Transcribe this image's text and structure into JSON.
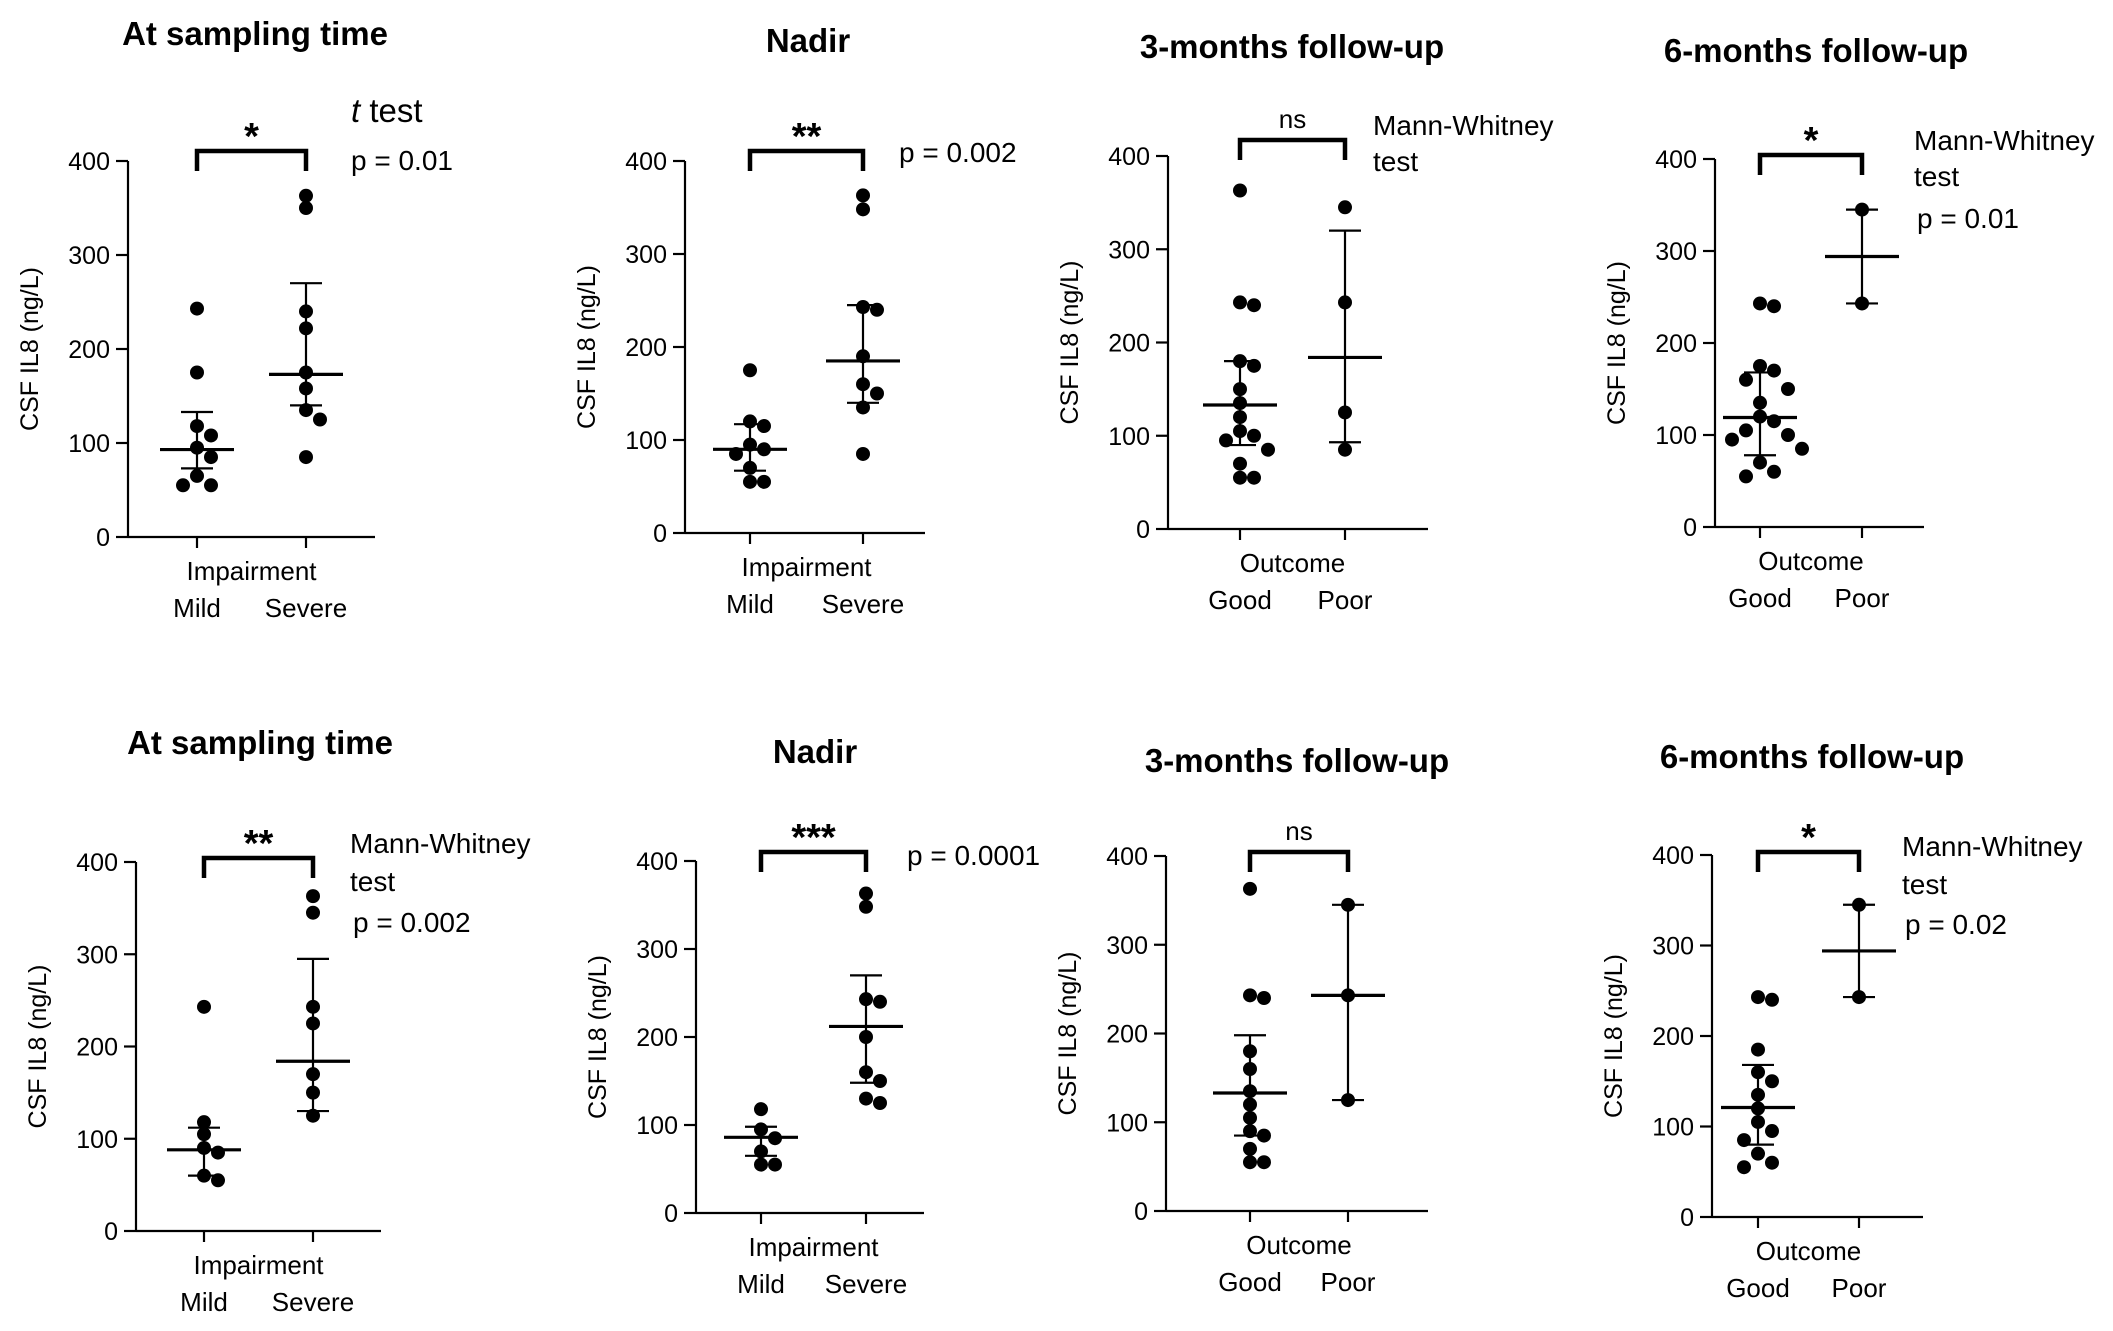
{
  "chart_data": [
    {
      "type": "scatter",
      "title": "At sampling time",
      "ylabel": "CSF IL8 (ng/L)",
      "xlabel": "Impairment",
      "ylim": [
        0,
        400
      ],
      "yticks": [
        "0",
        "100",
        "200",
        "300",
        "400"
      ],
      "groups": [
        {
          "name": "Mild",
          "values": [
            243,
            175,
            118,
            108,
            95,
            85,
            65,
            55,
            55
          ],
          "mean": 93,
          "err_low": 73,
          "err_high": 133
        },
        {
          "name": "Severe",
          "values": [
            363,
            350,
            240,
            222,
            175,
            158,
            135,
            125,
            85
          ],
          "mean": 173,
          "err_low": 140,
          "err_high": 270
        }
      ],
      "significance": "*",
      "annotation": {
        "test_italic": "t",
        "test": " test",
        "p": "p = 0.01"
      }
    },
    {
      "type": "scatter",
      "title": "Nadir",
      "ylabel": "CSF IL8 (ng/L)",
      "xlabel": "Impairment",
      "ylim": [
        0,
        400
      ],
      "yticks": [
        "0",
        "100",
        "200",
        "300",
        "400"
      ],
      "groups": [
        {
          "name": "Mild",
          "values": [
            175,
            120,
            115,
            95,
            90,
            85,
            70,
            55,
            55
          ],
          "mean": 90,
          "err_low": 67,
          "err_high": 117
        },
        {
          "name": "Severe",
          "values": [
            363,
            348,
            243,
            240,
            190,
            160,
            150,
            135,
            85
          ],
          "mean": 185,
          "err_low": 140,
          "err_high": 245
        }
      ],
      "significance": "**",
      "annotation": {
        "test_italic": "",
        "test": "",
        "p": "p = 0.002"
      }
    },
    {
      "type": "scatter",
      "title": "3-months follow-up",
      "ylabel": "CSF IL8 (ng/L)",
      "xlabel": "Outcome",
      "ylim": [
        0,
        400
      ],
      "yticks": [
        "0",
        "100",
        "200",
        "300",
        "400"
      ],
      "groups": [
        {
          "name": "Good",
          "values": [
            363,
            243,
            240,
            180,
            175,
            150,
            135,
            120,
            105,
            100,
            95,
            85,
            70,
            55,
            55
          ],
          "mean": 133,
          "err_low": 90,
          "err_high": 180
        },
        {
          "name": "Poor",
          "values": [
            345,
            243,
            125,
            85
          ],
          "mean": 184,
          "err_low": 93,
          "err_high": 320
        }
      ],
      "significance": "ns",
      "annotation": {
        "test_italic": "",
        "test": "Mann-Whitney test",
        "p": ""
      }
    },
    {
      "type": "scatter",
      "title": "6-months follow-up",
      "ylabel": "CSF IL8 (ng/L)",
      "xlabel": "Outcome",
      "ylim": [
        0,
        400
      ],
      "yticks": [
        "0",
        "100",
        "200",
        "300",
        "400"
      ],
      "groups": [
        {
          "name": "Good",
          "values": [
            243,
            240,
            175,
            170,
            160,
            150,
            135,
            120,
            115,
            105,
            100,
            95,
            85,
            70,
            60,
            55
          ],
          "mean": 119,
          "err_low": 78,
          "err_high": 168
        },
        {
          "name": "Poor",
          "values": [
            345,
            243
          ],
          "mean": 294,
          "err_low": 243,
          "err_high": 345
        }
      ],
      "significance": "*",
      "annotation": {
        "test_italic": "",
        "test": "Mann-Whitney test",
        "p": "p = 0.01"
      }
    },
    {
      "type": "scatter",
      "title": "At sampling time",
      "ylabel": "CSF IL8 (ng/L)",
      "xlabel": "Impairment",
      "ylim": [
        0,
        400
      ],
      "yticks": [
        "0",
        "100",
        "200",
        "300",
        "400"
      ],
      "groups": [
        {
          "name": "Mild",
          "values": [
            243,
            118,
            105,
            90,
            85,
            60,
            55
          ],
          "mean": 88,
          "err_low": 60,
          "err_high": 112
        },
        {
          "name": "Severe",
          "values": [
            363,
            345,
            243,
            225,
            170,
            150,
            125
          ],
          "mean": 184,
          "err_low": 130,
          "err_high": 295
        }
      ],
      "significance": "**",
      "annotation": {
        "test_italic": "",
        "test": "Mann-Whitney test",
        "p": "p = 0.002"
      }
    },
    {
      "type": "scatter",
      "title": "Nadir",
      "ylabel": "CSF IL8 (ng/L)",
      "xlabel": "Impairment",
      "ylim": [
        0,
        400
      ],
      "yticks": [
        "0",
        "100",
        "200",
        "300",
        "400"
      ],
      "groups": [
        {
          "name": "Mild",
          "values": [
            118,
            95,
            85,
            70,
            55,
            55
          ],
          "mean": 86,
          "err_low": 65,
          "err_high": 98
        },
        {
          "name": "Severe",
          "values": [
            363,
            348,
            243,
            240,
            200,
            160,
            150,
            130,
            125
          ],
          "mean": 212,
          "err_low": 148,
          "err_high": 270
        }
      ],
      "significance": "***",
      "annotation": {
        "test_italic": "",
        "test": "",
        "p": "p = 0.0001"
      }
    },
    {
      "type": "scatter",
      "title": "3-months follow-up",
      "ylabel": "CSF IL8 (ng/L)",
      "xlabel": "Outcome",
      "ylim": [
        0,
        400
      ],
      "yticks": [
        "0",
        "100",
        "200",
        "300",
        "400"
      ],
      "groups": [
        {
          "name": "Good",
          "values": [
            363,
            243,
            240,
            180,
            160,
            135,
            120,
            105,
            90,
            85,
            70,
            55,
            55
          ],
          "mean": 133,
          "err_low": 85,
          "err_high": 198
        },
        {
          "name": "Poor",
          "values": [
            345,
            243,
            125
          ],
          "mean": 243,
          "err_low": 125,
          "err_high": 345
        }
      ],
      "significance": "ns",
      "annotation": {
        "test_italic": "",
        "test": "",
        "p": ""
      }
    },
    {
      "type": "scatter",
      "title": "6-months follow-up",
      "ylabel": "CSF IL8 (ng/L)",
      "xlabel": "Outcome",
      "ylim": [
        0,
        400
      ],
      "yticks": [
        "0",
        "100",
        "200",
        "300",
        "400"
      ],
      "groups": [
        {
          "name": "Good",
          "values": [
            243,
            240,
            185,
            160,
            150,
            135,
            120,
            105,
            95,
            85,
            70,
            60,
            55
          ],
          "mean": 121,
          "err_low": 80,
          "err_high": 168
        },
        {
          "name": "Poor",
          "values": [
            345,
            243
          ],
          "mean": 294,
          "err_low": 243,
          "err_high": 345
        }
      ],
      "significance": "*",
      "annotation": {
        "test_italic": "",
        "test": "Mann-Whitney test",
        "p": "p = 0.02"
      }
    }
  ]
}
